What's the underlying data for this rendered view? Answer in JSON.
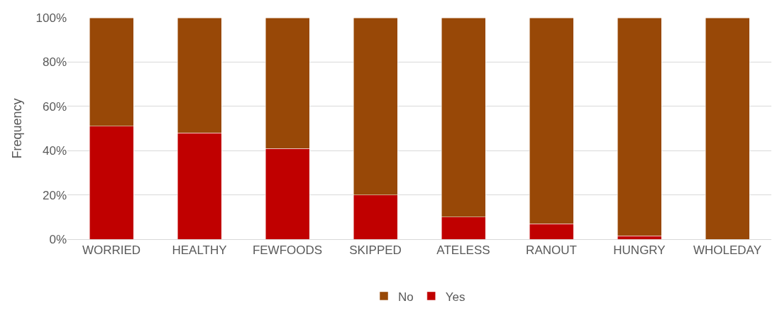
{
  "chart_data": {
    "type": "bar",
    "stacked": true,
    "ylabel": "Frequency",
    "categories": [
      "WORRIED",
      "HEALTHY",
      "FEWFOODS",
      "SKIPPED",
      "ATELESS",
      "RANOUT",
      "HUNGRY",
      "WHOLEDAY"
    ],
    "series": [
      {
        "name": "Yes",
        "color": "#c00000",
        "values": [
          51,
          48,
          41,
          20,
          10,
          7,
          1.6,
          0
        ]
      },
      {
        "name": "No",
        "color": "#984807",
        "values": [
          49,
          52,
          59,
          80,
          90,
          93,
          98.4,
          100
        ]
      }
    ],
    "ylim": [
      0,
      100
    ],
    "yticks": [
      {
        "value": 0,
        "label": "0%"
      },
      {
        "value": 20,
        "label": "20%"
      },
      {
        "value": 40,
        "label": "40%"
      },
      {
        "value": 60,
        "label": "60%"
      },
      {
        "value": 80,
        "label": "80%"
      },
      {
        "value": 100,
        "label": "100%"
      }
    ],
    "grid": "y",
    "legend": "bottom"
  }
}
